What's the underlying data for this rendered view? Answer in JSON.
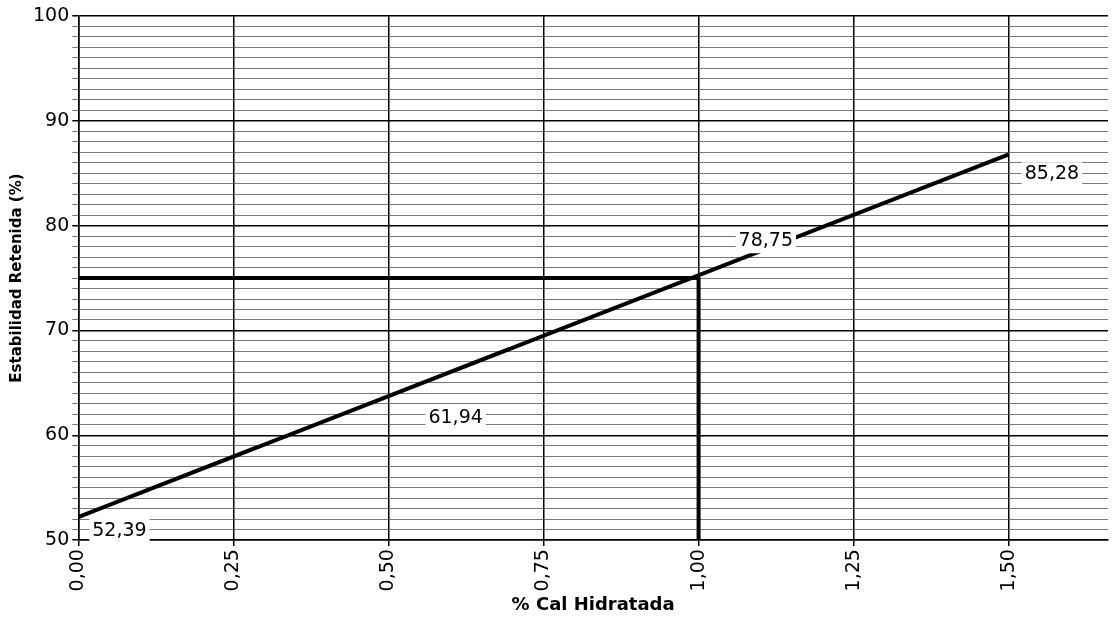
{
  "chart_data": {
    "type": "line",
    "xlabel": "% Cal Hidratada",
    "ylabel": "Estabilidad Retenida (%)",
    "series": [
      {
        "x": [
          0,
          1.5
        ],
        "values": [
          52.2,
          86.8
        ],
        "color": "#000000"
      },
      {
        "x": [
          0,
          1,
          1
        ],
        "values": [
          75,
          75,
          50
        ],
        "color": "#000000"
      }
    ],
    "annotations": [
      "52,39",
      "61,94",
      "78,75",
      "85,28"
    ],
    "xlim": [
      0,
      1.66
    ],
    "xticks": [
      {
        "value": 0,
        "label": "0,00"
      },
      {
        "value": 0.25,
        "label": "0,25"
      },
      {
        "value": 0.5,
        "label": "0,50"
      },
      {
        "value": 0.75,
        "label": "0,75"
      },
      {
        "value": 1,
        "label": "1,00"
      },
      {
        "value": 1.25,
        "label": "1,25"
      },
      {
        "value": 1.5,
        "label": "1,50"
      }
    ],
    "ylim": [
      50,
      100
    ],
    "yticks": [
      50,
      {
        "value": 51,
        "label": null
      },
      {
        "value": 52,
        "label": null
      },
      {
        "value": 53,
        "label": null
      },
      {
        "value": 54,
        "label": null
      },
      {
        "value": 55,
        "label": null
      },
      {
        "value": 56,
        "label": null
      },
      {
        "value": 57,
        "label": null
      },
      {
        "value": 58,
        "label": null
      },
      {
        "value": 59,
        "label": null
      },
      60,
      {
        "value": 61,
        "label": null
      },
      {
        "value": 62,
        "label": null
      },
      {
        "value": 63,
        "label": null
      },
      {
        "value": 64,
        "label": null
      },
      {
        "value": 65,
        "label": null
      },
      {
        "value": 66,
        "label": null
      },
      {
        "value": 67,
        "label": null
      },
      {
        "value": 68,
        "label": null
      },
      {
        "value": 69,
        "label": null
      },
      70,
      {
        "value": 71,
        "label": null
      },
      {
        "value": 72,
        "label": null
      },
      {
        "value": 73,
        "label": null
      },
      {
        "value": 74,
        "label": null
      },
      {
        "value": 75,
        "label": null
      },
      {
        "value": 76,
        "label": null
      },
      {
        "value": 77,
        "label": null
      },
      {
        "value": 78,
        "label": null
      },
      {
        "value": 79,
        "label": null
      },
      80,
      {
        "value": 81,
        "label": null
      },
      {
        "value": 82,
        "label": null
      },
      {
        "value": 83,
        "label": null
      },
      {
        "value": 84,
        "label": null
      },
      {
        "value": 85,
        "label": null
      },
      {
        "value": 86,
        "label": null
      },
      {
        "value": 87,
        "label": null
      },
      {
        "value": 88,
        "label": null
      },
      {
        "value": 89,
        "label": null
      },
      90,
      {
        "value": 91,
        "label": null
      },
      {
        "value": 92,
        "label": null
      },
      {
        "value": 93,
        "label": null
      },
      {
        "value": 94,
        "label": null
      },
      {
        "value": 95,
        "label": null
      },
      {
        "value": 96,
        "label": null
      },
      {
        "value": 97,
        "label": null
      },
      {
        "value": 98,
        "label": null
      },
      {
        "value": 99,
        "label": null
      },
      100
    ],
    "grid": true,
    "legend": false,
    "marker": "none",
    "line_style": "solid"
  }
}
